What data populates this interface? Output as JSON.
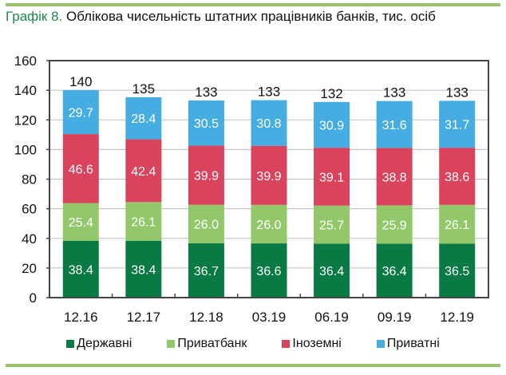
{
  "title": {
    "lead": "Графік 8.",
    "text": " Облікова чисельність штатних працівників банків, тис. осіб"
  },
  "chart_data": {
    "type": "bar",
    "stacked": true,
    "categories": [
      "12.16",
      "12.17",
      "12.18",
      "03.19",
      "06.19",
      "09.19",
      "12.19"
    ],
    "series": [
      {
        "name": "Державні",
        "color": "#0a7a45",
        "values": [
          38.4,
          38.4,
          36.7,
          36.6,
          36.4,
          36.4,
          36.5
        ]
      },
      {
        "name": "Приватбанк",
        "color": "#92c86a",
        "values": [
          25.4,
          26.1,
          26.0,
          26.0,
          25.7,
          25.9,
          26.1
        ]
      },
      {
        "name": "Іноземні",
        "color": "#d9435c",
        "values": [
          46.6,
          42.4,
          39.9,
          39.9,
          39.1,
          38.8,
          38.6
        ]
      },
      {
        "name": "Приватні",
        "color": "#45ade2",
        "values": [
          29.7,
          28.4,
          30.5,
          30.8,
          30.9,
          31.6,
          31.7
        ]
      }
    ],
    "totals": [
      140,
      135,
      133,
      133,
      132,
      133,
      133
    ],
    "ylim": [
      0,
      160
    ],
    "yticks": [
      0,
      20,
      40,
      60,
      80,
      100,
      120,
      140,
      160
    ],
    "grid": "horizontal",
    "legend": "bottom"
  }
}
